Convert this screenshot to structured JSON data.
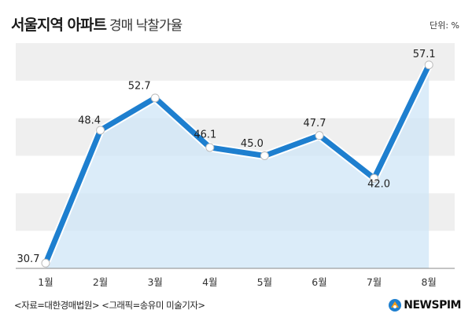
{
  "header": {
    "title": "서울지역 아파트",
    "subtitle": "경매 낙찰가율",
    "unit": "단위: %"
  },
  "footer": {
    "source": "<자료=대한경매법원> <그래픽=송유미 미술기자>",
    "logo_text": "NEWSPIM"
  },
  "colors": {
    "line": "#1e7fcf",
    "area_fill": "#cfe6f7",
    "band_gray": "#efefef",
    "logo_orange": "#f39c1a",
    "logo_blue": "#1e7fcf"
  },
  "chart_data": {
    "type": "line",
    "categories": [
      "1월",
      "2월",
      "3월",
      "4월",
      "5월",
      "6월",
      "7월",
      "8월"
    ],
    "values": [
      30.7,
      48.4,
      52.7,
      46.1,
      45.0,
      47.7,
      42.0,
      57.1
    ],
    "title": "서울지역 아파트 경매 낙찰가율",
    "xlabel": "",
    "ylabel": "",
    "unit": "%",
    "ylim": [
      30,
      60
    ],
    "grid": "horizontal bands",
    "legend": "none"
  }
}
